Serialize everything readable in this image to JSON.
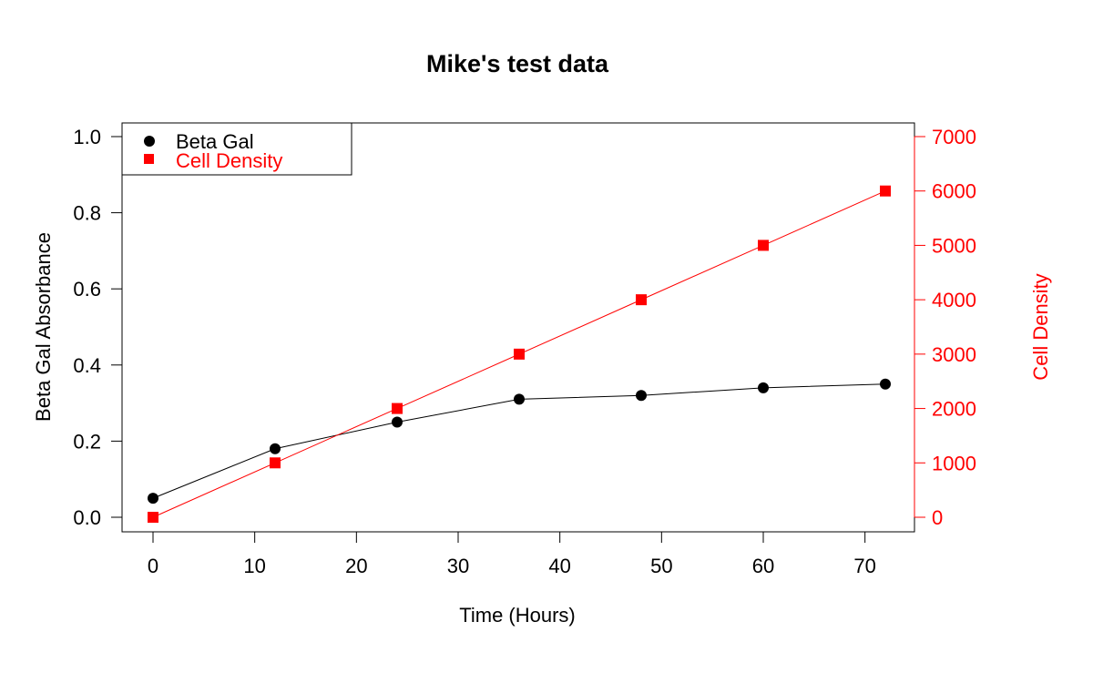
{
  "chart_data": {
    "type": "line",
    "title": "Mike's test data",
    "xlabel": "Time (Hours)",
    "ylabel": "Beta Gal Absorbance",
    "y2label": "Cell Density",
    "xlim": [
      0,
      72
    ],
    "ylim": [
      0,
      1.0
    ],
    "y2lim": [
      0,
      7000
    ],
    "xticks": [
      0,
      10,
      20,
      30,
      40,
      50,
      60,
      70
    ],
    "yticks": [
      0.0,
      0.2,
      0.4,
      0.6,
      0.8,
      1.0
    ],
    "yticklabels": [
      "0.0",
      "0.2",
      "0.4",
      "0.6",
      "0.8",
      "1.0"
    ],
    "y2ticks": [
      0,
      1000,
      2000,
      3000,
      4000,
      5000,
      6000,
      7000
    ],
    "grid": false,
    "legend_position": "top-left",
    "x": [
      0,
      12,
      24,
      36,
      48,
      60,
      72
    ],
    "series": [
      {
        "name": "Beta Gal",
        "axis": "left",
        "color": "#000000",
        "marker": "circle",
        "values": [
          0.05,
          0.18,
          0.25,
          0.31,
          0.32,
          0.34,
          0.35
        ]
      },
      {
        "name": "Cell Density",
        "axis": "right",
        "color": "#ff0000",
        "marker": "square",
        "values": [
          0,
          1000,
          2000,
          3000,
          4000,
          5000,
          6000
        ]
      }
    ]
  }
}
